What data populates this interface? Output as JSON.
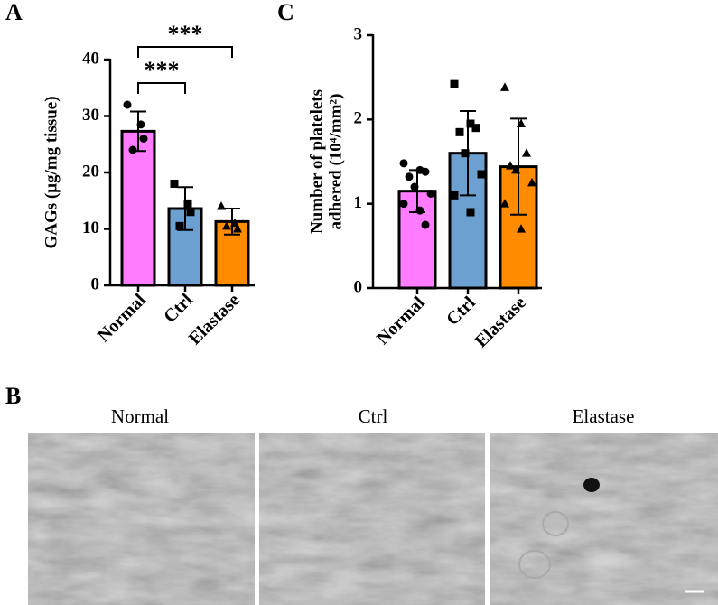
{
  "panel_labels": [
    "A",
    "B",
    "C"
  ],
  "chart_data": [
    {
      "type": "bar",
      "ylabel": [
        "GAGs (μg/mg tissue)"
      ],
      "categories": [
        "Normal",
        "Ctrl",
        "Elastase"
      ],
      "values": [
        27.3,
        13.6,
        11.3
      ],
      "errors": [
        3.5,
        3.8,
        2.3
      ],
      "points": [
        [
          32,
          28.5,
          26,
          24
        ],
        [
          18,
          14.5,
          13,
          10.5
        ],
        [
          14,
          11,
          10,
          10.5
        ]
      ],
      "colors": [
        "#ff7bff",
        "#6ca0d0",
        "#ff8c00"
      ],
      "markers": [
        "circle",
        "square",
        "triangle"
      ],
      "ylim": [
        0,
        40
      ],
      "yticks": [
        0,
        10,
        20,
        30,
        40
      ],
      "annotations": [
        {
          "text": "***",
          "from": 0,
          "to": 1
        },
        {
          "text": "***",
          "from": 0,
          "to": 2
        }
      ]
    },
    {
      "type": "bar",
      "ylabel": [
        "Number of platelets",
        "adhered (10⁴/mm²)"
      ],
      "categories": [
        "Normal",
        "Ctrl",
        "Elastase"
      ],
      "values": [
        1.15,
        1.6,
        1.44
      ],
      "errors": [
        0.25,
        0.5,
        0.57
      ],
      "points": [
        [
          1.48,
          1.4,
          1.38,
          1.32,
          1.2,
          1.12,
          1.0,
          0.92,
          0.75
        ],
        [
          2.42,
          1.95,
          1.9,
          1.85,
          1.6,
          1.35,
          1.1,
          0.9
        ],
        [
          2.38,
          1.95,
          1.6,
          1.45,
          1.4,
          1.25,
          1.0,
          0.7
        ]
      ],
      "colors": [
        "#ff7bff",
        "#6ca0d0",
        "#ff8c00"
      ],
      "markers": [
        "circle",
        "square",
        "triangle"
      ],
      "ylim": [
        0,
        3
      ],
      "yticks": [
        0,
        1,
        2,
        3
      ]
    }
  ],
  "images": {
    "titles": [
      "Normal",
      "Ctrl",
      "Elastase"
    ]
  }
}
